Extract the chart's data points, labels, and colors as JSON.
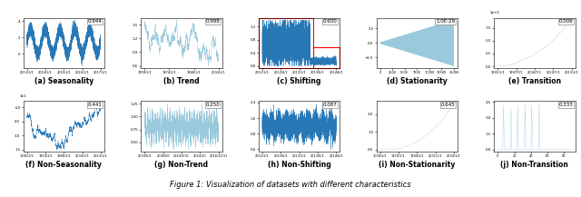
{
  "title": "Figure 1: Visualization of datasets with different characteristics",
  "subplots": [
    {
      "label": "(a) Seasonality",
      "score": "0.944",
      "color": "#2878b5",
      "type": "seasonality"
    },
    {
      "label": "(b) Trend",
      "score": "0.998",
      "color": "#9ac9db",
      "type": "trend"
    },
    {
      "label": "(c) Shifting",
      "score": "0.600",
      "color": "#2878b5",
      "type": "shifting",
      "has_box": true
    },
    {
      "label": "(d) Stationarity",
      "score": "1.0E-29",
      "color": "#9ac9db",
      "type": "stationarity"
    },
    {
      "label": "(e) Transition",
      "score": "0.006",
      "color": "#9ac9db",
      "type": "transition"
    },
    {
      "label": "(f) Non-Seasonality",
      "score": "0.441",
      "color": "#2878b5",
      "type": "non_seasonality"
    },
    {
      "label": "(g) Non-Trend",
      "score": "0.250",
      "color": "#9ac9db",
      "type": "non_trend"
    },
    {
      "label": "(h) Non-Shifting",
      "score": "0.087",
      "color": "#2878b5",
      "type": "non_shifting"
    },
    {
      "label": "(i) Non-Stationarity",
      "score": "0.645",
      "color": "#9ac9db",
      "type": "non_stationarity"
    },
    {
      "label": "(j) Non-Transition",
      "score": "0.333",
      "color": "#9ac9db",
      "type": "non_transition"
    }
  ],
  "score_fontsize": 4.0,
  "label_fontsize": 5.5,
  "title_fontsize": 6.0
}
